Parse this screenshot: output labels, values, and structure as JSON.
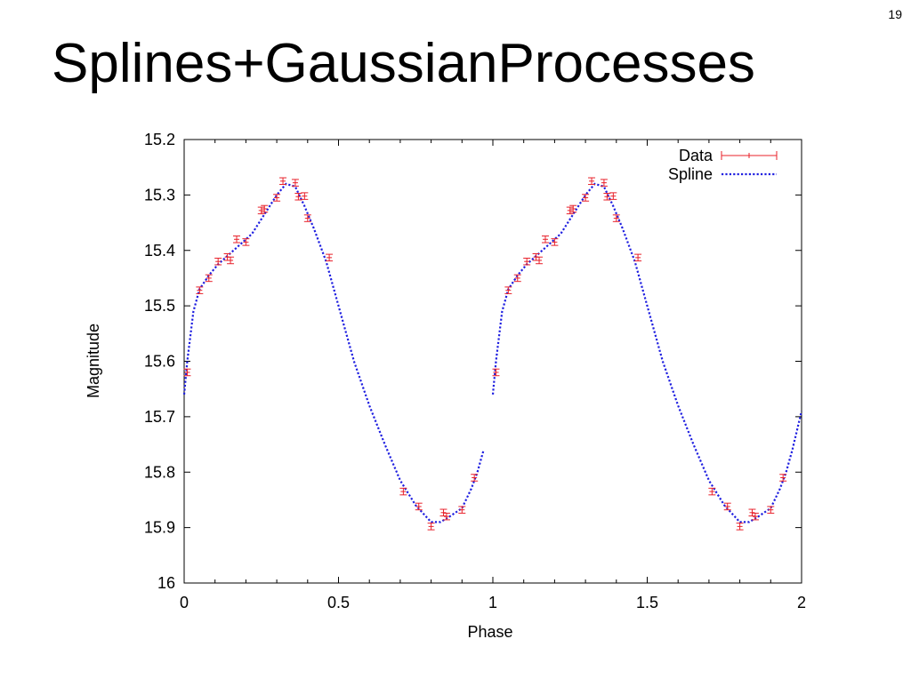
{
  "slide": {
    "number": "19",
    "title": "Splines+GaussianProcesses"
  },
  "colors": {
    "data": "#e8202a",
    "spline": "#1f1fe0",
    "axis": "#000000"
  },
  "chart_data": {
    "type": "line",
    "title": "",
    "xlabel": "Phase",
    "ylabel": "Magnitude",
    "xlim": [
      0,
      2
    ],
    "ylim": [
      15.2,
      16
    ],
    "y_inverted": true,
    "grid": false,
    "legend_position": "top-right",
    "x_ticks": [
      "0",
      "0.5",
      "1",
      "1.5",
      "2"
    ],
    "y_ticks": [
      "15.2",
      "15.3",
      "15.4",
      "15.5",
      "15.6",
      "15.7",
      "15.8",
      "15.9",
      "16"
    ],
    "series": [
      {
        "name": "Data",
        "style": "points-with-errorbars",
        "error": 0.006,
        "x": [
          0.01,
          0.05,
          0.08,
          0.11,
          0.14,
          0.15,
          0.17,
          0.2,
          0.25,
          0.26,
          0.3,
          0.32,
          0.36,
          0.37,
          0.39,
          0.4,
          0.47,
          0.71,
          0.76,
          0.8,
          0.84,
          0.85,
          0.9,
          0.94,
          1.01,
          1.05,
          1.08,
          1.11,
          1.14,
          1.15,
          1.17,
          1.2,
          1.25,
          1.26,
          1.3,
          1.32,
          1.36,
          1.37,
          1.39,
          1.4,
          1.47,
          1.71,
          1.76,
          1.8,
          1.84,
          1.85,
          1.9,
          1.94
        ],
        "y": [
          15.62,
          15.472,
          15.45,
          15.42,
          15.412,
          15.418,
          15.38,
          15.385,
          15.328,
          15.325,
          15.305,
          15.275,
          15.278,
          15.303,
          15.302,
          15.342,
          15.413,
          15.835,
          15.862,
          15.898,
          15.873,
          15.88,
          15.868,
          15.81,
          15.62,
          15.472,
          15.45,
          15.42,
          15.412,
          15.418,
          15.38,
          15.385,
          15.328,
          15.325,
          15.305,
          15.275,
          15.278,
          15.303,
          15.302,
          15.342,
          15.413,
          15.835,
          15.862,
          15.898,
          15.873,
          15.88,
          15.868,
          15.81
        ]
      },
      {
        "name": "Spline",
        "style": "dotted-line",
        "segments": [
          {
            "x": [
              0,
              0.01,
              0.03,
              0.05,
              0.08,
              0.11,
              0.14,
              0.18,
              0.22,
              0.26,
              0.3,
              0.33,
              0.36,
              0.39,
              0.42,
              0.46,
              0.5,
              0.55,
              0.6,
              0.65,
              0.7,
              0.75,
              0.8,
              0.83,
              0.86,
              0.9,
              0.93,
              0.95,
              0.97
            ],
            "y": [
              15.66,
              15.6,
              15.51,
              15.47,
              15.445,
              15.425,
              15.41,
              15.39,
              15.37,
              15.335,
              15.3,
              15.28,
              15.285,
              15.32,
              15.36,
              15.42,
              15.5,
              15.6,
              15.68,
              15.75,
              15.815,
              15.86,
              15.89,
              15.89,
              15.88,
              15.865,
              15.83,
              15.8,
              15.76
            ]
          },
          {
            "x": [
              1,
              1.01,
              1.03,
              1.05,
              1.08,
              1.11,
              1.14,
              1.18,
              1.22,
              1.26,
              1.3,
              1.33,
              1.36,
              1.39,
              1.42,
              1.46,
              1.5,
              1.55,
              1.6,
              1.65,
              1.7,
              1.75,
              1.8,
              1.83,
              1.86,
              1.9,
              1.93,
              1.95,
              1.97,
              2
            ],
            "y": [
              15.66,
              15.6,
              15.51,
              15.47,
              15.445,
              15.425,
              15.41,
              15.39,
              15.37,
              15.335,
              15.3,
              15.28,
              15.285,
              15.32,
              15.36,
              15.42,
              15.5,
              15.6,
              15.68,
              15.75,
              15.815,
              15.86,
              15.89,
              15.89,
              15.88,
              15.865,
              15.83,
              15.8,
              15.76,
              15.69
            ]
          }
        ]
      }
    ]
  }
}
